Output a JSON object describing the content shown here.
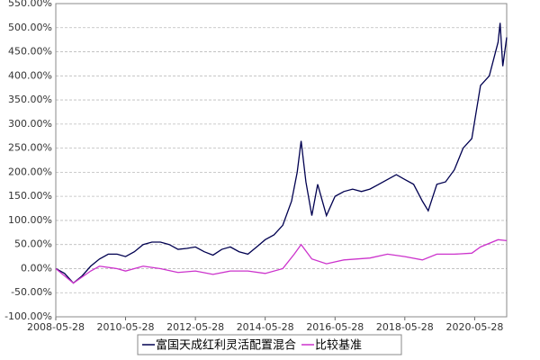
{
  "chart_data": {
    "type": "line",
    "xlim": [
      "2008-05-28",
      "2021-04-28"
    ],
    "xticks": [
      "2008-05-28",
      "2010-05-28",
      "2012-05-28",
      "2014-05-28",
      "2016-05-28",
      "2018-05-28",
      "2020-05-28"
    ],
    "ylim": [
      -100,
      550
    ],
    "yticks": [
      {
        "value": -100,
        "label": "-100.00%"
      },
      {
        "value": -50,
        "label": "-50.00%"
      },
      {
        "value": 0,
        "label": "0.00%"
      },
      {
        "value": 50,
        "label": "50.00%"
      },
      {
        "value": 100,
        "label": "100.00%"
      },
      {
        "value": 150,
        "label": "150.00%"
      },
      {
        "value": 200,
        "label": "200.00%"
      },
      {
        "value": 250,
        "label": "250.00%"
      },
      {
        "value": 300,
        "label": "300.00%"
      },
      {
        "value": 350,
        "label": "350.00%"
      },
      {
        "value": 400,
        "label": "400.00%"
      },
      {
        "value": 450,
        "label": "450.00%"
      },
      {
        "value": 500,
        "label": "500.00%"
      },
      {
        "value": 550,
        "label": "550.00%"
      }
    ],
    "grid": true,
    "legend": "bottom",
    "series": [
      {
        "name": "富国天成红利灵活配置混合",
        "color": "#000050",
        "x": [
          "2008-05-28",
          "2008-08-28",
          "2008-11-28",
          "2009-02-28",
          "2009-05-28",
          "2009-08-28",
          "2009-11-28",
          "2010-02-28",
          "2010-05-28",
          "2010-08-28",
          "2010-11-28",
          "2011-02-28",
          "2011-05-28",
          "2011-08-28",
          "2011-11-28",
          "2012-02-28",
          "2012-05-28",
          "2012-08-28",
          "2012-11-28",
          "2013-02-28",
          "2013-05-28",
          "2013-08-28",
          "2013-11-28",
          "2014-02-28",
          "2014-05-28",
          "2014-08-28",
          "2014-11-28",
          "2015-02-28",
          "2015-04-28",
          "2015-06-08",
          "2015-07-28",
          "2015-09-28",
          "2015-11-28",
          "2016-02-28",
          "2016-05-28",
          "2016-08-28",
          "2016-11-28",
          "2017-02-28",
          "2017-05-28",
          "2017-08-28",
          "2017-11-28",
          "2018-02-28",
          "2018-05-28",
          "2018-08-28",
          "2018-11-28",
          "2019-01-28",
          "2019-04-28",
          "2019-07-28",
          "2019-10-28",
          "2020-01-28",
          "2020-04-28",
          "2020-07-28",
          "2020-10-28",
          "2021-01-28",
          "2021-02-18",
          "2021-03-18",
          "2021-04-28"
        ],
        "values": [
          0,
          -10,
          -30,
          -15,
          5,
          20,
          30,
          30,
          25,
          35,
          50,
          55,
          55,
          50,
          40,
          42,
          45,
          35,
          28,
          40,
          45,
          35,
          30,
          45,
          60,
          70,
          90,
          140,
          200,
          265,
          180,
          110,
          175,
          110,
          150,
          160,
          165,
          160,
          165,
          175,
          185,
          195,
          185,
          175,
          140,
          120,
          175,
          180,
          205,
          250,
          270,
          380,
          400,
          470,
          510,
          420,
          480
        ]
      },
      {
        "name": "比较基准",
        "color": "#cc33cc",
        "x": [
          "2008-05-28",
          "2008-11-28",
          "2009-05-28",
          "2009-08-28",
          "2010-02-28",
          "2010-05-28",
          "2010-11-28",
          "2011-05-28",
          "2011-11-28",
          "2012-05-28",
          "2012-11-28",
          "2013-05-28",
          "2013-11-28",
          "2014-05-28",
          "2014-11-28",
          "2015-03-28",
          "2015-06-08",
          "2015-09-28",
          "2016-02-28",
          "2016-08-28",
          "2017-05-28",
          "2017-11-28",
          "2018-05-28",
          "2018-11-28",
          "2019-04-28",
          "2019-10-28",
          "2020-04-28",
          "2020-07-28",
          "2021-01-28",
          "2021-04-28"
        ],
        "values": [
          0,
          -30,
          -5,
          5,
          0,
          -5,
          5,
          0,
          -8,
          -5,
          -12,
          -5,
          -5,
          -10,
          0,
          30,
          50,
          20,
          10,
          18,
          22,
          30,
          25,
          18,
          30,
          30,
          32,
          45,
          60,
          58
        ]
      }
    ]
  }
}
